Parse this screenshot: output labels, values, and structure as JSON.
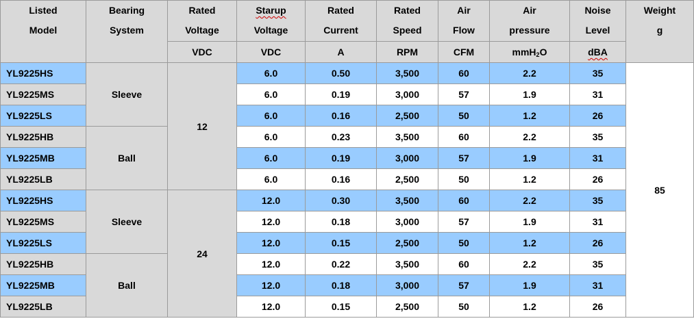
{
  "headers": [
    {
      "line1": "Listed",
      "line2": "Model",
      "unit": ""
    },
    {
      "line1": "Bearing",
      "line2": "System",
      "unit": ""
    },
    {
      "line1": "Rated",
      "line2": "Voltage",
      "unit": "VDC"
    },
    {
      "line1": "Starup",
      "line2": "Voltage",
      "unit": "VDC"
    },
    {
      "line1": "Rated",
      "line2": "Current",
      "unit": "A"
    },
    {
      "line1": "Rated",
      "line2": "Speed",
      "unit": "RPM"
    },
    {
      "line1": "Air",
      "line2": "Flow",
      "unit": "CFM"
    },
    {
      "line1": "Air",
      "line2": "pressure",
      "unit_pre": "mmH",
      "unit_sub": "2",
      "unit_post": "O"
    },
    {
      "line1": "Noise",
      "line2": "Level",
      "unit": "dBA"
    },
    {
      "line1": "Weight",
      "line2": "",
      "unit": "g"
    }
  ],
  "groups": {
    "bearing": [
      "Sleeve",
      "Ball",
      "Sleeve",
      "Ball"
    ],
    "voltage": [
      "12",
      "24"
    ],
    "weight": "85"
  },
  "rows": [
    {
      "model": "YL9225HS",
      "startup": "6.0",
      "current": "0.50",
      "speed": "3,500",
      "flow": "60",
      "pressure": "2.2",
      "noise": "35"
    },
    {
      "model": "YL9225MS",
      "startup": "6.0",
      "current": "0.19",
      "speed": "3,000",
      "flow": "57",
      "pressure": "1.9",
      "noise": "31"
    },
    {
      "model": "YL9225LS",
      "startup": "6.0",
      "current": "0.16",
      "speed": "2,500",
      "flow": "50",
      "pressure": "1.2",
      "noise": "26"
    },
    {
      "model": "YL9225HB",
      "startup": "6.0",
      "current": "0.23",
      "speed": "3,500",
      "flow": "60",
      "pressure": "2.2",
      "noise": "35"
    },
    {
      "model": "YL9225MB",
      "startup": "6.0",
      "current": "0.19",
      "speed": "3,000",
      "flow": "57",
      "pressure": "1.9",
      "noise": "31"
    },
    {
      "model": "YL9225LB",
      "startup": "6.0",
      "current": "0.16",
      "speed": "2,500",
      "flow": "50",
      "pressure": "1.2",
      "noise": "26"
    },
    {
      "model": "YL9225HS",
      "startup": "12.0",
      "current": "0.30",
      "speed": "3,500",
      "flow": "60",
      "pressure": "2.2",
      "noise": "35"
    },
    {
      "model": "YL9225MS",
      "startup": "12.0",
      "current": "0.18",
      "speed": "3,000",
      "flow": "57",
      "pressure": "1.9",
      "noise": "31"
    },
    {
      "model": "YL9225LS",
      "startup": "12.0",
      "current": "0.15",
      "speed": "2,500",
      "flow": "50",
      "pressure": "1.2",
      "noise": "26"
    },
    {
      "model": "YL9225HB",
      "startup": "12.0",
      "current": "0.22",
      "speed": "3,500",
      "flow": "60",
      "pressure": "2.2",
      "noise": "35"
    },
    {
      "model": "YL9225MB",
      "startup": "12.0",
      "current": "0.18",
      "speed": "3,000",
      "flow": "57",
      "pressure": "1.9",
      "noise": "31"
    },
    {
      "model": "YL9225LB",
      "startup": "12.0",
      "current": "0.15",
      "speed": "2,500",
      "flow": "50",
      "pressure": "1.2",
      "noise": "26"
    }
  ],
  "colors": {
    "highlight": "#99ccff",
    "shade": "#d9d9d9",
    "border": "#9a9a9a"
  }
}
